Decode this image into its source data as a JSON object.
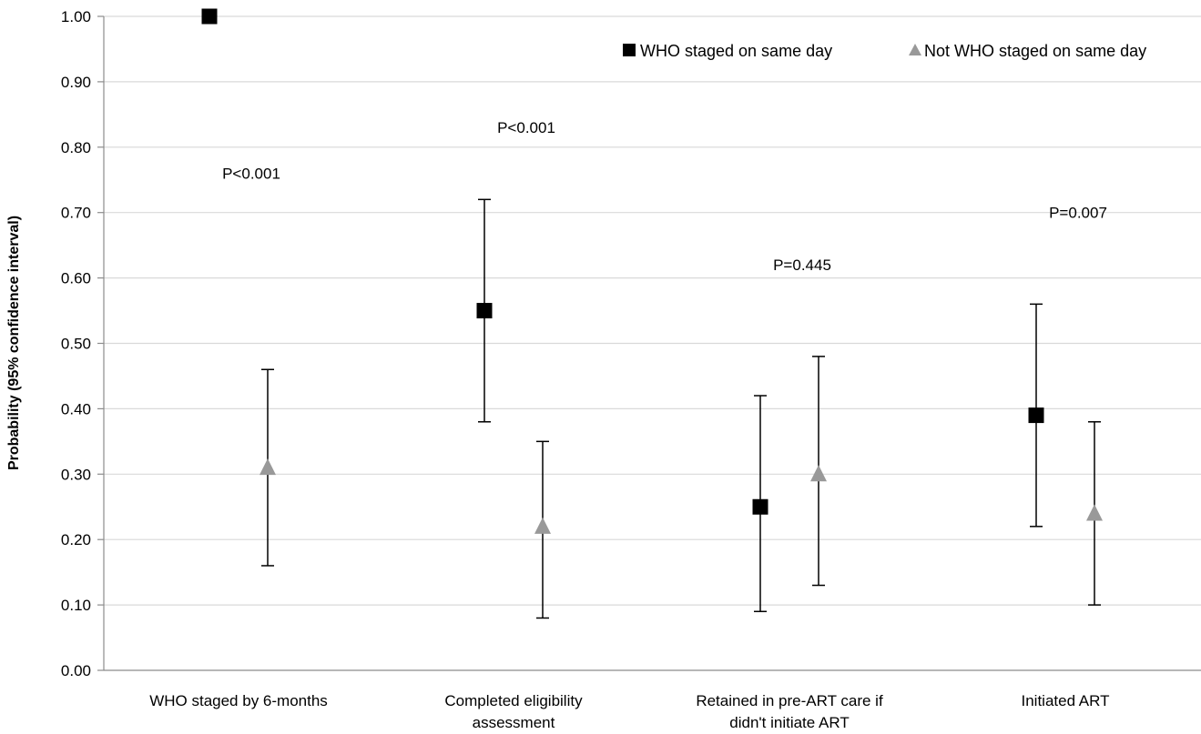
{
  "chart_data": {
    "type": "scatter",
    "ylabel": "Probability (95% confidence interval)",
    "xlabel": "",
    "ylim": [
      0,
      1
    ],
    "yticks": [
      "0.00",
      "0.10",
      "0.20",
      "0.30",
      "0.40",
      "0.50",
      "0.60",
      "0.70",
      "0.80",
      "0.90",
      "1.00"
    ],
    "grid": true,
    "legend_position": "top-right",
    "categories": [
      [
        "WHO staged by 6-months"
      ],
      [
        "Completed eligibility",
        "assessment"
      ],
      [
        "Retained in pre-ART care if",
        "didn't initiate ART"
      ],
      [
        "Initiated ART"
      ]
    ],
    "series": [
      {
        "name": "WHO staged on same day",
        "marker": "square",
        "color": "#000000",
        "values": [
          1.0,
          0.55,
          0.25,
          0.39
        ],
        "lower": [
          null,
          0.38,
          0.09,
          0.22
        ],
        "upper": [
          null,
          0.72,
          0.42,
          0.56
        ]
      },
      {
        "name": "Not WHO staged on same day",
        "marker": "triangle",
        "color": "#999999",
        "values": [
          0.31,
          0.22,
          0.3,
          0.24
        ],
        "lower": [
          0.16,
          0.08,
          0.13,
          0.1
        ],
        "upper": [
          0.46,
          0.35,
          0.48,
          0.38
        ]
      }
    ],
    "annotations": [
      {
        "text": "P<0.001",
        "x": 0,
        "y": 0.76
      },
      {
        "text": "P<0.001",
        "x": 1,
        "y": 0.83
      },
      {
        "text": "P=0.445",
        "x": 2,
        "y": 0.62
      },
      {
        "text": "P=0.007",
        "x": 3,
        "y": 0.7
      }
    ]
  }
}
